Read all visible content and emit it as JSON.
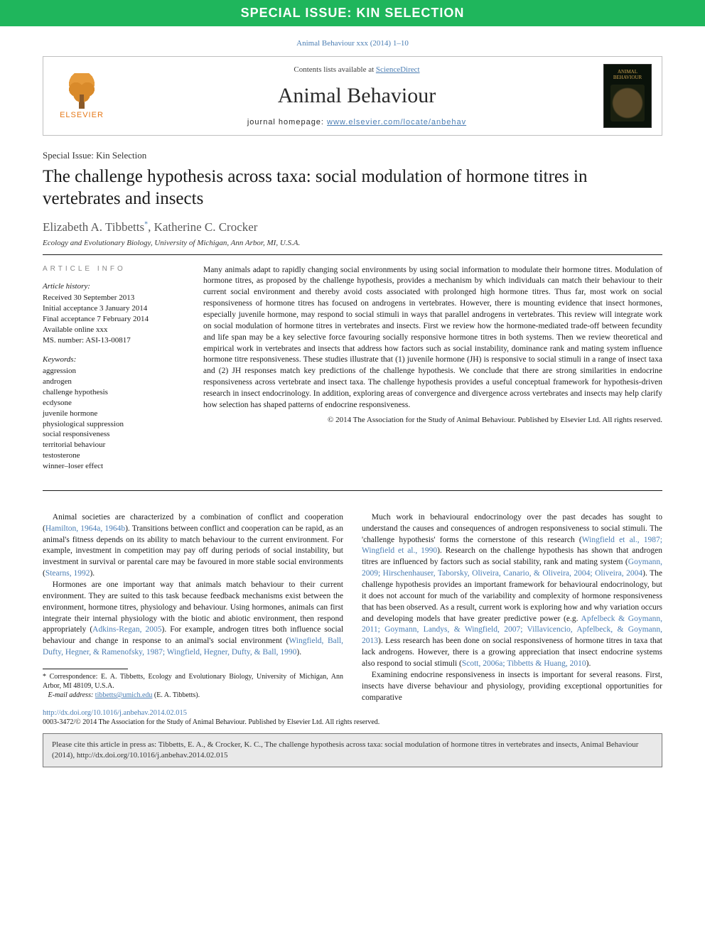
{
  "banner": {
    "text": "SPECIAL ISSUE: KIN SELECTION",
    "bg": "#1fb65c"
  },
  "journal_ref": "Animal Behaviour xxx (2014) 1–10",
  "masthead": {
    "contents_prefix": "Contents lists available at ",
    "contents_link": "ScienceDirect",
    "journal": "Animal Behaviour",
    "homepage_prefix": "journal homepage: ",
    "homepage": "www.elsevier.com/locate/anbehav",
    "publisher": "ELSEVIER",
    "cover_title": "ANIMAL BEHAVIOUR"
  },
  "section_label": "Special Issue: Kin Selection",
  "title": "The challenge hypothesis across taxa: social modulation of hormone titres in vertebrates and insects",
  "authors": "Elizabeth A. Tibbetts*, Katherine C. Crocker",
  "affiliation": "Ecology and Evolutionary Biology, University of Michigan, Ann Arbor, MI, U.S.A.",
  "article_info": {
    "heading": "ARTICLE INFO",
    "history_label": "Article history:",
    "history": [
      "Received 30 September 2013",
      "Initial acceptance 3 January 2014",
      "Final acceptance 7 February 2014",
      "Available online xxx",
      "MS. number: ASI-13-00817"
    ],
    "keywords_label": "Keywords:",
    "keywords": [
      "aggression",
      "androgen",
      "challenge hypothesis",
      "ecdysone",
      "juvenile hormone",
      "physiological suppression",
      "social responsiveness",
      "territorial behaviour",
      "testosterone",
      "winner–loser effect"
    ]
  },
  "abstract": "Many animals adapt to rapidly changing social environments by using social information to modulate their hormone titres. Modulation of hormone titres, as proposed by the challenge hypothesis, provides a mechanism by which individuals can match their behaviour to their current social environment and thereby avoid costs associated with prolonged high hormone titres. Thus far, most work on social responsiveness of hormone titres has focused on androgens in vertebrates. However, there is mounting evidence that insect hormones, especially juvenile hormone, may respond to social stimuli in ways that parallel androgens in vertebrates. This review will integrate work on social modulation of hormone titres in vertebrates and insects. First we review how the hormone-mediated trade-off between fecundity and life span may be a key selective force favouring socially responsive hormone titres in both systems. Then we review theoretical and empirical work in vertebrates and insects that address how factors such as social instability, dominance rank and mating system influence hormone titre responsiveness. These studies illustrate that (1) juvenile hormone (JH) is responsive to social stimuli in a range of insect taxa and (2) JH responses match key predictions of the challenge hypothesis. We conclude that there are strong similarities in endocrine responsiveness across vertebrate and insect taxa. The challenge hypothesis provides a useful conceptual framework for hypothesis-driven research in insect endocrinology. In addition, exploring areas of convergence and divergence across vertebrates and insects may help clarify how selection has shaped patterns of endocrine responsiveness.",
  "copyright_line": "© 2014 The Association for the Study of Animal Behaviour. Published by Elsevier Ltd. All rights reserved.",
  "body": {
    "p1a": "Animal societies are characterized by a combination of conflict and cooperation (",
    "p1c1": "Hamilton, 1964a, 1964b",
    "p1b": "). Transitions between conflict and cooperation can be rapid, as an animal's fitness depends on its ability to match behaviour to the current environment. For example, investment in competition may pay off during periods of social instability, but investment in survival or parental care may be favoured in more stable social environments (",
    "p1c2": "Stearns, 1992",
    "p1c": ").",
    "p2a": "Hormones are one important way that animals match behaviour to their current environment. They are suited to this task because feedback mechanisms exist between the environment, hormone titres, physiology and behaviour. Using hormones, animals can first integrate their internal physiology with the biotic and abiotic environment, then respond appropriately (",
    "p2c1": "Adkins-Regan, 2005",
    "p2b": "). For example, androgen titres both influence social behaviour and change in response to an animal's social environment (",
    "p2c2": "Wingfield, Ball, Dufty, Hegner, & Ramenofsky, 1987; Wingfield, Hegner, Dufty, & Ball, 1990",
    "p2c": ").",
    "p3a": "Much work in behavioural endocrinology over the past decades has sought to understand the causes and consequences of androgen responsiveness to social stimuli. The 'challenge hypothesis' forms the cornerstone of this research (",
    "p3c1": "Wingfield et al., 1987; Wingfield et al., 1990",
    "p3b": "). Research on the challenge hypothesis has shown that androgen titres are influenced by factors such as social stability, rank and mating system (",
    "p3c2": "Goymann, 2009; Hirschenhauser, Taborsky, Oliveira, Canario, & Oliveira, 2004; Oliveira, 2004",
    "p3c": "). The challenge hypothesis provides an important framework for behavioural endocrinology, but it does not account for much of the variability and complexity of hormone responsiveness that has been observed. As a result, current work is exploring how and why variation occurs and developing models that have greater predictive power (e.g. ",
    "p3c3": "Apfelbeck & Goymann, 2011; Goymann, Landys, & Wingfield, 2007; Villavicencio, Apfelbeck, & Goymann, 2013",
    "p3d": "). Less research has been done on social responsiveness of hormone titres in taxa that lack androgens. However, there is a growing appreciation that insect endocrine systems also respond to social stimuli (",
    "p3c4": "Scott, 2006a; Tibbetts & Huang, 2010",
    "p3e": ").",
    "p4": "Examining endocrine responsiveness in insects is important for several reasons. First, insects have diverse behaviour and physiology, providing exceptional opportunities for comparative"
  },
  "footnotes": {
    "corr": "* Correspondence: E. A. Tibbetts, Ecology and Evolutionary Biology, University of Michigan, Ann Arbor, MI 48109, U.S.A.",
    "email_label": "E-mail address: ",
    "email": "tibbetts@umich.edu",
    "email_tail": " (E. A. Tibbetts)."
  },
  "doi": "http://dx.doi.org/10.1016/j.anbehav.2014.02.015",
  "issn_line": "0003-3472/© 2014 The Association for the Study of Animal Behaviour. Published by Elsevier Ltd. All rights reserved.",
  "citation_box": "Please cite this article in press as: Tibbetts, E. A., & Crocker, K. C., The challenge hypothesis across taxa: social modulation of hormone titres in vertebrates and insects, Animal Behaviour (2014), http://dx.doi.org/10.1016/j.anbehav.2014.02.015",
  "colors": {
    "link": "#4a7db3",
    "banner_bg": "#1fb65c",
    "text": "#1a1a1a"
  }
}
